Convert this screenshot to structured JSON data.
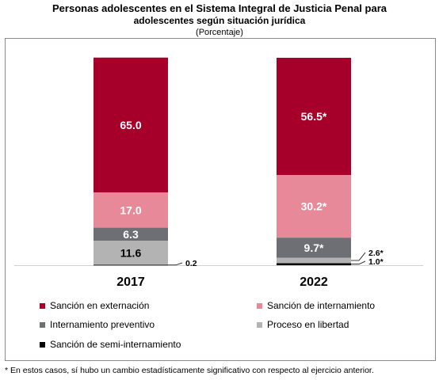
{
  "title_line1": "Personas adolescentes en el Sistema Integral de Justicia Penal para",
  "title_line2": "adolescentes según situación jurídica",
  "subtitle": "(Porcentaje)",
  "footnote": "* En estos casos, sí hubo un cambio estadísticamente significativo con respecto al ejercicio anterior.",
  "colors": {
    "externacion": "#a6002a",
    "internamiento_sancion": "#e8899a",
    "internamiento_preventivo": "#6e6e75",
    "libertad": "#b3b3b3",
    "semi": "#000000"
  },
  "chart_data": {
    "type": "bar",
    "stacked": true,
    "categories": [
      "2017",
      "2022"
    ],
    "ylim": [
      0,
      100
    ],
    "series": [
      {
        "name": "Sanción de semi-internamiento",
        "color_key": "semi",
        "values": [
          0.2,
          1.0
        ],
        "labels": [
          "0.2",
          "1.0*"
        ]
      },
      {
        "name": "Proceso en libertad",
        "color_key": "libertad",
        "values": [
          11.6,
          2.6
        ],
        "labels": [
          "11.6",
          "2.6*"
        ]
      },
      {
        "name": "Internamiento preventivo",
        "color_key": "internamiento_preventivo",
        "values": [
          6.3,
          9.7
        ],
        "labels": [
          "6.3",
          "9.7*"
        ]
      },
      {
        "name": "Sanción de internamiento",
        "color_key": "internamiento_sancion",
        "values": [
          17.0,
          30.2
        ],
        "labels": [
          "17.0",
          "30.2*"
        ]
      },
      {
        "name": "Sanción en externación",
        "color_key": "externacion",
        "values": [
          65.0,
          56.5
        ],
        "labels": [
          "65.0",
          "56.5*"
        ]
      }
    ],
    "legend": [
      {
        "label": "Sanción en externación",
        "color_key": "externacion"
      },
      {
        "label": "Sanción de internamiento",
        "color_key": "internamiento_sancion"
      },
      {
        "label": "Internamiento preventivo",
        "color_key": "internamiento_preventivo"
      },
      {
        "label": "Proceso en libertad",
        "color_key": "libertad"
      },
      {
        "label": "Sanción de semi-internamiento",
        "color_key": "semi"
      }
    ]
  }
}
